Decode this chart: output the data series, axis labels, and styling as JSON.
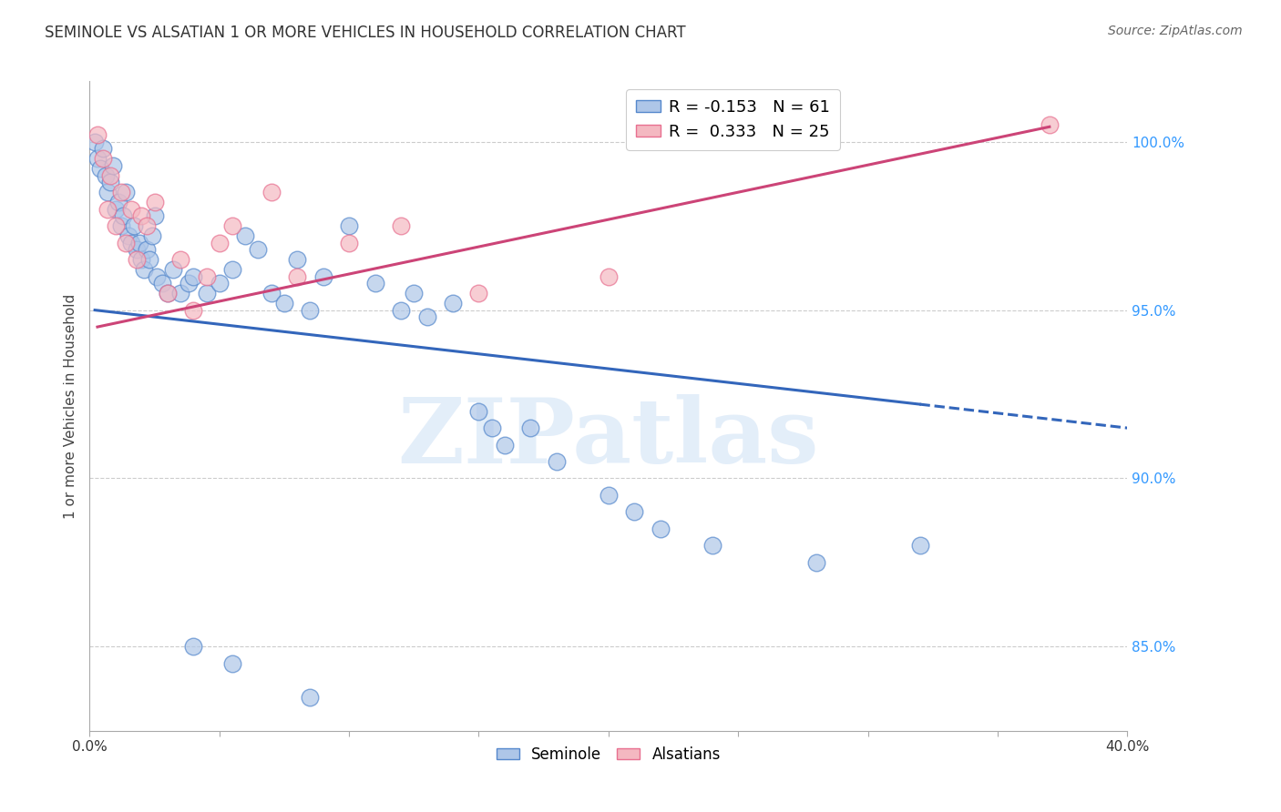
{
  "title": "SEMINOLE VS ALSATIAN 1 OR MORE VEHICLES IN HOUSEHOLD CORRELATION CHART",
  "source": "Source: ZipAtlas.com",
  "ylabel": "1 or more Vehicles in Household",
  "xmin": 0.0,
  "xmax": 40.0,
  "ymin": 82.5,
  "ymax": 101.8,
  "seminole_R": -0.153,
  "seminole_N": 61,
  "alsatian_R": 0.333,
  "alsatian_N": 25,
  "seminole_color": "#aec6e8",
  "alsatian_color": "#f4b8c1",
  "seminole_edge_color": "#5588cc",
  "alsatian_edge_color": "#e87090",
  "seminole_line_color": "#3366bb",
  "alsatian_line_color": "#cc4477",
  "watermark_text": "ZIPatlas",
  "seminole_points": [
    [
      0.2,
      100.0
    ],
    [
      0.3,
      99.5
    ],
    [
      0.4,
      99.2
    ],
    [
      0.5,
      99.8
    ],
    [
      0.6,
      99.0
    ],
    [
      0.7,
      98.5
    ],
    [
      0.8,
      98.8
    ],
    [
      0.9,
      99.3
    ],
    [
      1.0,
      98.0
    ],
    [
      1.1,
      98.2
    ],
    [
      1.2,
      97.5
    ],
    [
      1.3,
      97.8
    ],
    [
      1.4,
      98.5
    ],
    [
      1.5,
      97.2
    ],
    [
      1.6,
      97.0
    ],
    [
      1.7,
      97.5
    ],
    [
      1.8,
      96.8
    ],
    [
      1.9,
      97.0
    ],
    [
      2.0,
      96.5
    ],
    [
      2.1,
      96.2
    ],
    [
      2.2,
      96.8
    ],
    [
      2.3,
      96.5
    ],
    [
      2.4,
      97.2
    ],
    [
      2.5,
      97.8
    ],
    [
      2.6,
      96.0
    ],
    [
      2.8,
      95.8
    ],
    [
      3.0,
      95.5
    ],
    [
      3.2,
      96.2
    ],
    [
      3.5,
      95.5
    ],
    [
      3.8,
      95.8
    ],
    [
      4.0,
      96.0
    ],
    [
      4.5,
      95.5
    ],
    [
      5.0,
      95.8
    ],
    [
      5.5,
      96.2
    ],
    [
      6.0,
      97.2
    ],
    [
      6.5,
      96.8
    ],
    [
      7.0,
      95.5
    ],
    [
      7.5,
      95.2
    ],
    [
      8.0,
      96.5
    ],
    [
      8.5,
      95.0
    ],
    [
      9.0,
      96.0
    ],
    [
      10.0,
      97.5
    ],
    [
      11.0,
      95.8
    ],
    [
      12.0,
      95.0
    ],
    [
      12.5,
      95.5
    ],
    [
      13.0,
      94.8
    ],
    [
      14.0,
      95.2
    ],
    [
      15.0,
      92.0
    ],
    [
      15.5,
      91.5
    ],
    [
      16.0,
      91.0
    ],
    [
      17.0,
      91.5
    ],
    [
      18.0,
      90.5
    ],
    [
      20.0,
      89.5
    ],
    [
      21.0,
      89.0
    ],
    [
      22.0,
      88.5
    ],
    [
      24.0,
      88.0
    ],
    [
      28.0,
      87.5
    ],
    [
      32.0,
      88.0
    ],
    [
      4.0,
      85.0
    ],
    [
      5.5,
      84.5
    ],
    [
      8.5,
      83.5
    ]
  ],
  "alsatian_points": [
    [
      0.3,
      100.2
    ],
    [
      0.5,
      99.5
    ],
    [
      0.7,
      98.0
    ],
    [
      0.8,
      99.0
    ],
    [
      1.0,
      97.5
    ],
    [
      1.2,
      98.5
    ],
    [
      1.4,
      97.0
    ],
    [
      1.6,
      98.0
    ],
    [
      1.8,
      96.5
    ],
    [
      2.0,
      97.8
    ],
    [
      2.2,
      97.5
    ],
    [
      2.5,
      98.2
    ],
    [
      3.0,
      95.5
    ],
    [
      3.5,
      96.5
    ],
    [
      4.0,
      95.0
    ],
    [
      4.5,
      96.0
    ],
    [
      5.0,
      97.0
    ],
    [
      5.5,
      97.5
    ],
    [
      7.0,
      98.5
    ],
    [
      8.0,
      96.0
    ],
    [
      10.0,
      97.0
    ],
    [
      12.0,
      97.5
    ],
    [
      15.0,
      95.5
    ],
    [
      20.0,
      96.0
    ],
    [
      37.0,
      100.5
    ]
  ],
  "grid_yticks": [
    85.0,
    90.0,
    95.0,
    100.0
  ],
  "ytick_display": {
    "85.0": "85.0%",
    "90.0": "90.0%",
    "95.0": "95.0%",
    "100.0": "100.0%"
  },
  "blue_line_start_x": 0.2,
  "blue_line_solid_end_x": 32.0,
  "blue_line_dash_end_x": 40.0,
  "pink_line_start_x": 0.3,
  "pink_line_end_x": 37.0
}
